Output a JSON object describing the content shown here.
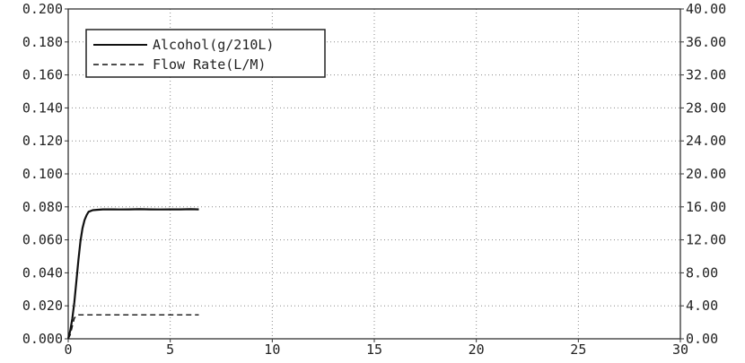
{
  "chart_data": {
    "type": "line",
    "title": "",
    "xlabel": "",
    "ylabel": "",
    "xlim": [
      0,
      30
    ],
    "ylim_left": [
      0.0,
      0.2
    ],
    "ylim_right": [
      0.0,
      40.0
    ],
    "grid": true,
    "legend_position": "top-left",
    "x_ticks": [
      "0",
      "5",
      "10",
      "15",
      "20",
      "25",
      "30"
    ],
    "y_left_ticks": [
      "0.000",
      "0.020",
      "0.040",
      "0.060",
      "0.080",
      "0.100",
      "0.120",
      "0.140",
      "0.160",
      "0.180",
      "0.200"
    ],
    "y_right_ticks": [
      "0.00",
      "4.00",
      "8.00",
      "12.00",
      "16.00",
      "20.00",
      "24.00",
      "28.00",
      "32.00",
      "36.00",
      "40.00"
    ],
    "series": [
      {
        "name": "Alcohol(g/210L)",
        "axis": "left",
        "style": "solid",
        "color": "#111111",
        "x": [
          0.0,
          0.1,
          0.2,
          0.3,
          0.4,
          0.5,
          0.6,
          0.7,
          0.8,
          0.9,
          1.0,
          1.2,
          1.4,
          1.7,
          2.0,
          2.5,
          3.0,
          3.5,
          4.0,
          4.5,
          5.0,
          5.5,
          6.0,
          6.4
        ],
        "y": [
          0.0,
          0.005,
          0.012,
          0.022,
          0.035,
          0.048,
          0.059,
          0.067,
          0.072,
          0.075,
          0.077,
          0.078,
          0.0782,
          0.0785,
          0.0785,
          0.0784,
          0.0785,
          0.0786,
          0.0785,
          0.0784,
          0.0785,
          0.0785,
          0.0786,
          0.0785
        ]
      },
      {
        "name": "Flow Rate(L/M)",
        "axis": "right",
        "style": "dashed",
        "color": "#111111",
        "x": [
          0.0,
          0.1,
          0.2,
          0.3,
          0.4,
          0.5,
          0.6,
          6.4
        ],
        "y": [
          0.0,
          0.5,
          1.5,
          2.5,
          2.8,
          2.9,
          2.9,
          2.9
        ]
      }
    ]
  }
}
